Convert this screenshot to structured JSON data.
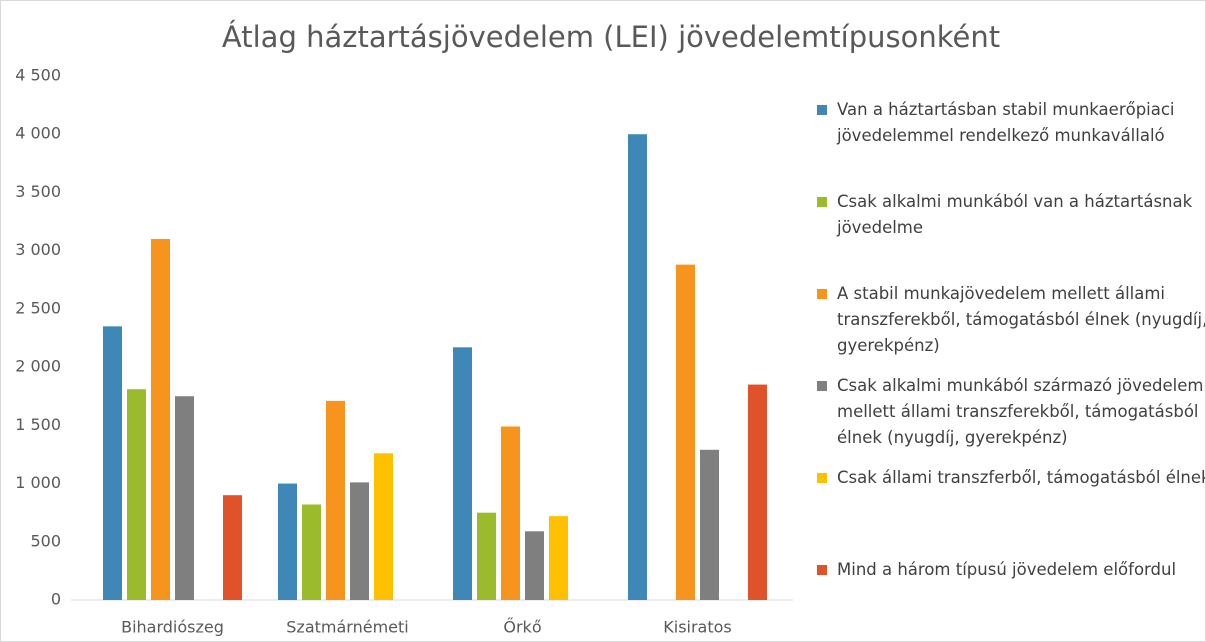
{
  "chart_data": {
    "type": "bar",
    "title": "Átlag háztartásjövedelem (LEI) jövedelemtípusonként",
    "categories": [
      "Bihardiószeg",
      "Szatmárnémeti",
      "Őrkő",
      "Kisiratos"
    ],
    "series": [
      {
        "name": "Van a háztartásban stabil munkaerőpiaci jövedelemmel rendelkező munkavállaló",
        "color": "#3f87b7",
        "values": [
          2350,
          1000,
          2170,
          4000
        ]
      },
      {
        "name": "Csak alkalmi munkából van a háztartásnak jövedelme",
        "color": "#9bbb2c",
        "values": [
          1810,
          820,
          750,
          null
        ]
      },
      {
        "name": "A stabil munkajövedelem mellett állami transzferekből, támogatásból élnek (nyugdíj, gyerekpénz)",
        "color": "#f7941d",
        "values": [
          3100,
          1710,
          1490,
          2880
        ]
      },
      {
        "name": "Csak alkalmi munkából származó jövedelem mellett állami transzferekből, támogatásból élnek (nyugdíj, gyerekpénz)",
        "color": "#7f7f7f",
        "values": [
          1750,
          1010,
          590,
          1290
        ]
      },
      {
        "name": "Csak állami transzferből, támogatásból élnek",
        "color": "#ffc000",
        "values": [
          null,
          1260,
          720,
          null
        ]
      },
      {
        "name": "Mind a három típusú jövedelem előfordul",
        "color": "#e0532a",
        "values": [
          900,
          null,
          null,
          1850
        ]
      }
    ],
    "ylim": [
      0,
      4500
    ],
    "yticks": [
      0,
      500,
      {
        "value": 1000,
        "label": "1 000"
      },
      {
        "value": 1500,
        "label": "1 500"
      },
      {
        "value": 2000,
        "label": "2 000"
      },
      {
        "value": 2500,
        "label": "2 500"
      },
      {
        "value": 3000,
        "label": "3 000"
      },
      {
        "value": 3500,
        "label": "3 500"
      },
      {
        "value": 4000,
        "label": "4 000"
      },
      {
        "value": 4500,
        "label": "4 500"
      }
    ],
    "grid": false
  }
}
